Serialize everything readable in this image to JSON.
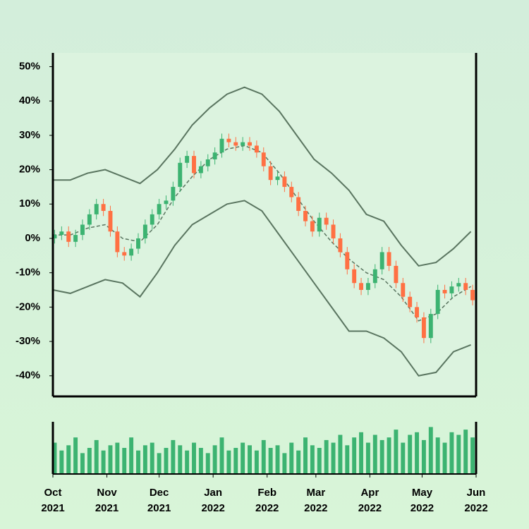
{
  "chart_data": {
    "type": "candlestick",
    "x": [
      1,
      5,
      9,
      13,
      17,
      21,
      25,
      29,
      33,
      37,
      41,
      45,
      49,
      53,
      57,
      61,
      65,
      69,
      73,
      77,
      81,
      85,
      89,
      93,
      97,
      101,
      105,
      109,
      113,
      117,
      121,
      125,
      129,
      133,
      137,
      141,
      145,
      149,
      153,
      157,
      161,
      165,
      169,
      173,
      177,
      181,
      185,
      189,
      193,
      197,
      201,
      205,
      209,
      213,
      217,
      221,
      225,
      229,
      233,
      237,
      241
    ],
    "open": [
      0,
      1,
      2,
      -1,
      1,
      4,
      7,
      10,
      8,
      2,
      -4,
      -5,
      -3,
      0,
      4,
      7,
      10,
      11,
      15,
      22,
      24,
      19,
      21,
      23,
      25,
      29,
      28,
      27,
      28,
      27,
      25,
      21,
      17,
      18,
      15,
      12,
      8,
      5,
      2,
      6,
      4,
      0,
      -4,
      -9,
      -13,
      -15,
      -13,
      -9,
      -4,
      -8,
      -13,
      -17,
      -20,
      -23,
      -29,
      -22,
      -15,
      -16,
      -14,
      -13,
      -15
    ],
    "high": [
      2.5,
      3.5,
      3.5,
      2.5,
      5.5,
      8.5,
      11.5,
      11.5,
      9.5,
      3.5,
      -2.5,
      -1.5,
      1.5,
      5.5,
      8.5,
      11.5,
      12.5,
      16.5,
      23.5,
      25.5,
      25.5,
      22.5,
      24.5,
      26.5,
      30.5,
      30.5,
      29.5,
      29.5,
      29.5,
      28.5,
      26.5,
      22.5,
      19.5,
      19.5,
      16.5,
      13.5,
      9.5,
      6.5,
      7.5,
      7.5,
      5.5,
      1.5,
      -2.5,
      -7.5,
      -11.5,
      -11.5,
      -7.5,
      -2.5,
      -2.5,
      -6.5,
      -11.5,
      -15.5,
      -18.5,
      -21.5,
      -20.5,
      -13.5,
      -13.5,
      -12.5,
      -11.5,
      -11.5,
      -13.5
    ],
    "low": [
      -1.5,
      -0.5,
      -2.5,
      -2.5,
      -0.5,
      2.5,
      5.5,
      6.5,
      0.5,
      -5.5,
      -6.5,
      -6.5,
      -4.5,
      -1.5,
      2.5,
      5.5,
      8.5,
      9.5,
      13.5,
      20.5,
      17.5,
      17.5,
      19.5,
      21.5,
      23.5,
      26.5,
      25.5,
      25.5,
      25.5,
      23.5,
      19.5,
      15.5,
      15.5,
      13.5,
      10.5,
      6.5,
      3.5,
      0.5,
      0.5,
      2.5,
      -1.5,
      -5.5,
      -10.5,
      -14.5,
      -16.5,
      -16.5,
      -14.5,
      -10.5,
      -9.5,
      -14.5,
      -18.5,
      -21.5,
      -24.5,
      -30.5,
      -30.5,
      -23.5,
      -17.5,
      -17.5,
      -15.5,
      -16.5,
      -19.5
    ],
    "close": [
      1,
      2,
      -1,
      1,
      4,
      7,
      10,
      8,
      2,
      -4,
      -5,
      -3,
      0,
      4,
      7,
      10,
      11,
      15,
      22,
      24,
      19,
      21,
      23,
      25,
      29,
      28,
      27,
      28,
      27,
      25,
      21,
      17,
      18,
      15,
      12,
      8,
      5,
      2,
      6,
      4,
      0,
      -4,
      -9,
      -13,
      -15,
      -13,
      -9,
      -4,
      -8,
      -13,
      -17,
      -20,
      -23,
      -29,
      -22,
      -15,
      -16,
      -14,
      -13,
      -15,
      -18
    ],
    "up_color": "#3cb371",
    "down_color": "#ff7043",
    "xlim": [
      0,
      243
    ],
    "xticks": [
      {
        "value": 0,
        "label": "Oct 2021"
      },
      {
        "value": 31,
        "label": "Nov 2021"
      },
      {
        "value": 61,
        "label": "Dec 2021"
      },
      {
        "value": 92,
        "label": "Jan 2022"
      },
      {
        "value": 123,
        "label": "Feb 2022"
      },
      {
        "value": 151,
        "label": "Mar 2022"
      },
      {
        "value": 182,
        "label": "Apr 2022"
      },
      {
        "value": 212,
        "label": "May 2022"
      },
      {
        "value": 243,
        "label": "Jun 2022"
      }
    ],
    "ylim": [
      -46,
      54
    ],
    "yticks": [
      {
        "value": -40,
        "label": "-40%"
      },
      {
        "value": -30,
        "label": "-30%"
      },
      {
        "value": -20,
        "label": "-20%"
      },
      {
        "value": -10,
        "label": "-10%"
      },
      {
        "value": 0,
        "label": "0%"
      },
      {
        "value": 10,
        "label": "10%"
      },
      {
        "value": 20,
        "label": "20%"
      },
      {
        "value": 30,
        "label": "30%"
      },
      {
        "value": 40,
        "label": "40%"
      },
      {
        "value": 50,
        "label": "50%"
      }
    ],
    "volume": {
      "ylim": [
        0,
        100
      ],
      "color": "#3cb371",
      "values": [
        60,
        45,
        55,
        70,
        40,
        50,
        65,
        45,
        55,
        60,
        50,
        70,
        45,
        55,
        60,
        40,
        50,
        65,
        55,
        45,
        60,
        50,
        40,
        55,
        70,
        45,
        50,
        60,
        55,
        45,
        65,
        50,
        55,
        40,
        60,
        45,
        70,
        55,
        50,
        65,
        60,
        75,
        55,
        70,
        80,
        60,
        75,
        65,
        70,
        85,
        60,
        75,
        80,
        65,
        90,
        70,
        60,
        80,
        75,
        85,
        70
      ]
    },
    "bands": {
      "color": "#5a7560",
      "x": [
        0,
        10,
        20,
        30,
        40,
        50,
        60,
        70,
        80,
        90,
        100,
        110,
        120,
        130,
        140,
        150,
        160,
        170,
        180,
        190,
        200,
        210,
        220,
        230,
        240
      ],
      "upper": [
        17,
        17,
        19,
        20,
        18,
        16,
        20,
        26,
        33,
        38,
        42,
        44,
        42,
        37,
        30,
        23,
        19,
        14,
        7,
        5,
        -2,
        -8,
        -7,
        -3,
        2
      ],
      "middle": [
        1,
        1,
        3,
        4,
        0,
        -1,
        4,
        12,
        18,
        23,
        26,
        27,
        25,
        19,
        12,
        5,
        -1,
        -6,
        -10,
        -12,
        -17,
        -24,
        -22,
        -17,
        -14
      ],
      "lower": [
        -15,
        -16,
        -14,
        -12,
        -13,
        -17,
        -10,
        -2,
        4,
        7,
        10,
        11,
        8,
        1,
        -6,
        -13,
        -20,
        -27,
        -27,
        -29,
        -33,
        -40,
        -39,
        -33,
        -31
      ]
    }
  }
}
